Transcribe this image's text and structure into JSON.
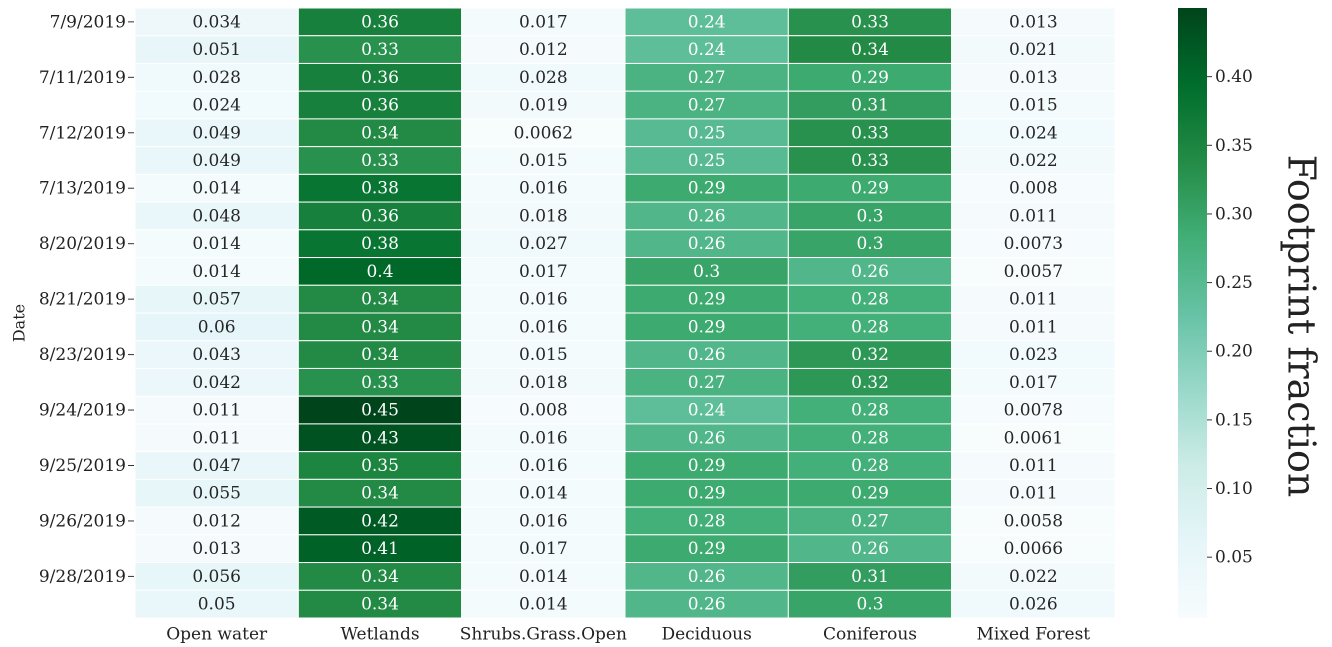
{
  "chart_data": {
    "type": "heatmap",
    "y_label": "Date",
    "colorbar_label": "Footprint fraction",
    "x": [
      "Open water",
      "Wetlands",
      "Shrubs.Grass.Open",
      "Deciduous",
      "Coniferous",
      "Mixed Forest"
    ],
    "y": [
      "7/9/2019",
      null,
      "7/11/2019",
      null,
      "7/12/2019",
      null,
      "7/13/2019",
      null,
      "8/20/2019",
      null,
      "8/21/2019",
      null,
      "8/23/2019",
      null,
      "9/24/2019",
      null,
      "9/25/2019",
      null,
      "9/26/2019",
      null,
      "9/28/2019",
      null
    ],
    "values": [
      [
        0.034,
        0.36,
        0.017,
        0.24,
        0.33,
        0.013
      ],
      [
        0.051,
        0.33,
        0.012,
        0.24,
        0.34,
        0.021
      ],
      [
        0.028,
        0.36,
        0.028,
        0.27,
        0.29,
        0.013
      ],
      [
        0.024,
        0.36,
        0.019,
        0.27,
        0.31,
        0.015
      ],
      [
        0.049,
        0.34,
        0.0062,
        0.25,
        0.33,
        0.024
      ],
      [
        0.049,
        0.33,
        0.015,
        0.25,
        0.33,
        0.022
      ],
      [
        0.014,
        0.38,
        0.016,
        0.29,
        0.29,
        0.008
      ],
      [
        0.048,
        0.36,
        0.018,
        0.26,
        0.3,
        0.011
      ],
      [
        0.014,
        0.38,
        0.027,
        0.26,
        0.3,
        0.0073
      ],
      [
        0.014,
        0.4,
        0.017,
        0.3,
        0.26,
        0.0057
      ],
      [
        0.057,
        0.34,
        0.016,
        0.29,
        0.28,
        0.011
      ],
      [
        0.06,
        0.34,
        0.016,
        0.29,
        0.28,
        0.011
      ],
      [
        0.043,
        0.34,
        0.015,
        0.26,
        0.32,
        0.023
      ],
      [
        0.042,
        0.33,
        0.018,
        0.27,
        0.32,
        0.017
      ],
      [
        0.011,
        0.45,
        0.008,
        0.24,
        0.28,
        0.0078
      ],
      [
        0.011,
        0.43,
        0.016,
        0.26,
        0.28,
        0.0061
      ],
      [
        0.047,
        0.35,
        0.016,
        0.29,
        0.28,
        0.011
      ],
      [
        0.055,
        0.34,
        0.014,
        0.29,
        0.29,
        0.011
      ],
      [
        0.012,
        0.42,
        0.016,
        0.28,
        0.27,
        0.0058
      ],
      [
        0.013,
        0.41,
        0.017,
        0.29,
        0.26,
        0.0066
      ],
      [
        0.056,
        0.34,
        0.014,
        0.26,
        0.31,
        0.022
      ],
      [
        0.05,
        0.34,
        0.014,
        0.26,
        0.3,
        0.026
      ]
    ],
    "clim": [
      0.0057,
      0.45
    ],
    "cticks": [
      0.05,
      {
        "value": 0.1,
        "label": "0.10"
      },
      0.15,
      {
        "value": 0.2,
        "label": "0.20"
      },
      0.25,
      {
        "value": 0.3,
        "label": "0.30"
      },
      0.35,
      {
        "value": 0.4,
        "label": "0.40"
      }
    ],
    "colormap": [
      "#f7fcfd",
      "#e5f5f9",
      "#ccece6",
      "#99d8c9",
      "#66c2a4",
      "#41ae76",
      "#238b45",
      "#006d2c",
      "#00441b"
    ]
  }
}
